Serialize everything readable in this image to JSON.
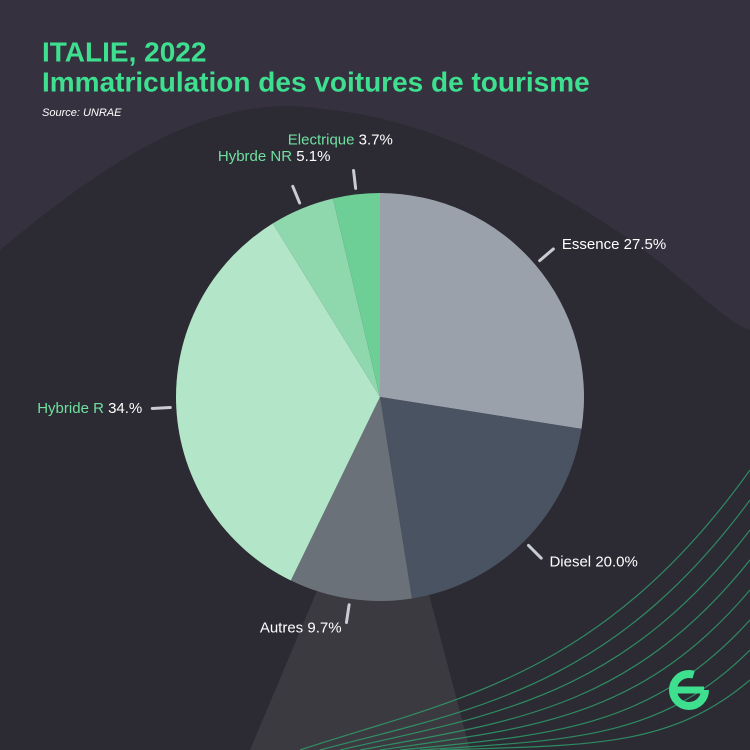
{
  "chart_data": {
    "type": "pie",
    "title": "ITALIE, 2022",
    "subtitle": "Immatriculation des voitures de tourisme",
    "source": "Source: UNRAE",
    "categories": [
      "Essence",
      "Diesel",
      "Autres",
      "Hybride R",
      "Hybrde NR",
      "Electrique"
    ],
    "values": [
      27.5,
      20.0,
      9.7,
      34,
      5.1,
      3.7
    ],
    "value_labels": [
      "27.5%",
      "20.0%",
      "9.7%",
      "34.%",
      "5.1%",
      "3.7%"
    ],
    "colors": [
      "#9ba1ab",
      "#4a5361",
      "#6b7179",
      "#b3e6c8",
      "#8fd8ae",
      "#6dcf96"
    ]
  }
}
